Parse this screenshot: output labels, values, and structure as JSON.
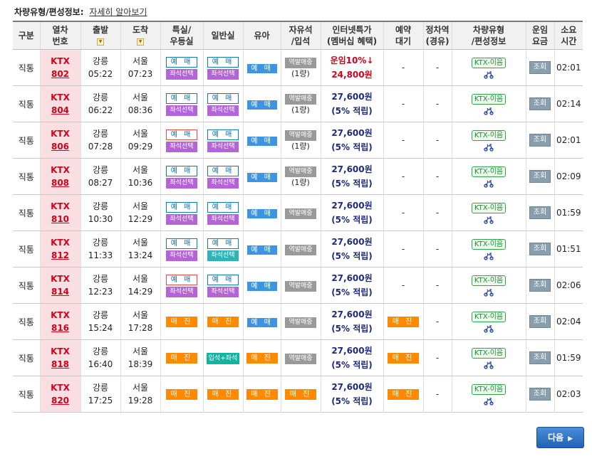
{
  "header": {
    "label": "차량유형/편성정보:",
    "link": "자세히 알아보기"
  },
  "columns": [
    "구분",
    "열차번호",
    "출발",
    "도착",
    "특실/우등실",
    "일반실",
    "유아",
    "자유석/입석",
    "인터넷특가(멤버십 혜택)",
    "예약대기",
    "정차역(경유)",
    "차량유형/편성정보",
    "운임요금",
    "소요시간"
  ],
  "columnLines": {
    "trainno": [
      "열차",
      "번호"
    ],
    "special": [
      "특실/",
      "우등실"
    ],
    "free": [
      "자유석",
      "/입석"
    ],
    "internet": [
      "인터넷특가",
      "(멤버십 혜택)"
    ],
    "waitlist": [
      "예약",
      "대기"
    ],
    "stops": [
      "정차역",
      "(경유)"
    ],
    "vehicle": [
      "차량유형",
      "/편성정보"
    ],
    "fare": [
      "운임",
      "요금"
    ],
    "duration": [
      "소요",
      "시간"
    ]
  },
  "labels": {
    "reserve": "예 매",
    "soldout": "매 진",
    "seatSelect": "좌석선택",
    "standing": "역발매중",
    "standingPlusSeat": "입석+좌석",
    "ktxEum": "KTX-이음",
    "inquiry": "조회",
    "dash": "-",
    "ktx": "KTX",
    "membership": "(5% 적립)",
    "discountLabel": "운임10%↓",
    "nextButton": "다음",
    "nextArrow": "▶"
  },
  "rows": [
    {
      "type": "직통",
      "train": "802",
      "dep": "강릉",
      "depTime": "05:22",
      "arr": "서울",
      "arrTime": "07:23",
      "special": "reserve",
      "specialBorder": "blue",
      "general": "reserve",
      "generalSeatColor": "purple",
      "infant": "reserve",
      "free": "standing",
      "freeSub": "(1량)",
      "price": "24,800원",
      "priceSub": "운임10%↓",
      "discount": true,
      "waitlist": "-",
      "stops": "-",
      "duration": "02:01"
    },
    {
      "type": "직통",
      "train": "804",
      "dep": "강릉",
      "depTime": "06:22",
      "arr": "서울",
      "arrTime": "08:36",
      "special": "reserve",
      "specialBorder": "blue",
      "general": "reserve",
      "generalSeatColor": "purple",
      "infant": "reserve",
      "free": "standing",
      "freeSub": "(1량)",
      "price": "27,600원",
      "priceSub": "(5% 적립)",
      "discount": false,
      "waitlist": "-",
      "stops": "-",
      "duration": "02:14"
    },
    {
      "type": "직통",
      "train": "806",
      "dep": "강릉",
      "depTime": "07:28",
      "arr": "서울",
      "arrTime": "09:29",
      "special": "reserve",
      "specialBorder": "red",
      "general": "reserve",
      "generalSeatColor": "purple",
      "infant": "reserve",
      "free": "standing",
      "freeSub": "(1량)",
      "price": "27,600원",
      "priceSub": "(5% 적립)",
      "discount": false,
      "waitlist": "-",
      "stops": "-",
      "duration": "02:01"
    },
    {
      "type": "직통",
      "train": "808",
      "dep": "강릉",
      "depTime": "08:27",
      "arr": "서울",
      "arrTime": "10:36",
      "special": "reserve",
      "specialBorder": "blue",
      "general": "reserve",
      "generalSeatColor": "purple",
      "infant": "reserve",
      "free": "standing",
      "freeSub": "(1량)",
      "price": "27,600원",
      "priceSub": "(5% 적립)",
      "discount": false,
      "waitlist": "-",
      "stops": "-",
      "duration": "02:09"
    },
    {
      "type": "직통",
      "train": "810",
      "dep": "강릉",
      "depTime": "10:30",
      "arr": "서울",
      "arrTime": "12:29",
      "special": "reserve",
      "specialBorder": "blue",
      "general": "reserve",
      "generalSeatColor": "purple",
      "infant": "reserve",
      "free": "standing",
      "freeSub": "",
      "price": "27,600원",
      "priceSub": "(5% 적립)",
      "discount": false,
      "waitlist": "-",
      "stops": "-",
      "duration": "01:59"
    },
    {
      "type": "직통",
      "train": "812",
      "dep": "강릉",
      "depTime": "11:33",
      "arr": "서울",
      "arrTime": "13:24",
      "special": "reserve",
      "specialBorder": "blue",
      "general": "reserve",
      "generalSeatColor": "teal",
      "infant": "reserve",
      "free": "standing",
      "freeSub": "",
      "price": "27,600원",
      "priceSub": "(5% 적립)",
      "discount": false,
      "waitlist": "-",
      "stops": "-",
      "duration": "01:51"
    },
    {
      "type": "직통",
      "train": "814",
      "dep": "강릉",
      "depTime": "12:23",
      "arr": "서울",
      "arrTime": "14:29",
      "special": "reserve",
      "specialBorder": "red",
      "general": "reserve",
      "generalSeatColor": "purple",
      "infant": "reserve",
      "free": "standing",
      "freeSub": "",
      "price": "27,600원",
      "priceSub": "(5% 적립)",
      "discount": false,
      "waitlist": "-",
      "stops": "-",
      "duration": "02:06"
    },
    {
      "type": "직통",
      "train": "816",
      "dep": "강릉",
      "depTime": "15:24",
      "arr": "서울",
      "arrTime": "17:28",
      "special": "soldout",
      "specialBorder": "",
      "general": "soldout",
      "generalSeatColor": "",
      "infant": "reserve",
      "free": "standing",
      "freeSub": "",
      "price": "27,600원",
      "priceSub": "(5% 적립)",
      "discount": false,
      "waitlist": "soldout",
      "stops": "-",
      "duration": "02:04"
    },
    {
      "type": "직통",
      "train": "818",
      "dep": "강릉",
      "depTime": "16:40",
      "arr": "서울",
      "arrTime": "18:39",
      "special": "soldout",
      "specialBorder": "",
      "general": "standplus",
      "generalSeatColor": "",
      "infant": "soldout",
      "free": "standing",
      "freeSub": "",
      "price": "27,600원",
      "priceSub": "(5% 적립)",
      "discount": false,
      "waitlist": "soldout",
      "stops": "-",
      "duration": "01:59"
    },
    {
      "type": "직통",
      "train": "820",
      "dep": "강릉",
      "depTime": "17:25",
      "arr": "서울",
      "arrTime": "19:28",
      "special": "soldout",
      "specialBorder": "",
      "general": "soldout",
      "generalSeatColor": "",
      "infant": "soldout",
      "free": "soldout",
      "freeSub": "",
      "price": "27,600원",
      "priceSub": "(5% 적립)",
      "discount": false,
      "waitlist": "soldout",
      "stops": "-",
      "duration": "02:03"
    }
  ],
  "colors": {
    "trainRed": "#d0021b",
    "priceNavy": "#1f2a7a",
    "soldout": "#ff8a00",
    "reserveBlue": "#3d94e0",
    "seatPurple": "#b464d8",
    "seatTeal": "#2fb2b8",
    "trainCellBg": "#f9dfe1"
  }
}
